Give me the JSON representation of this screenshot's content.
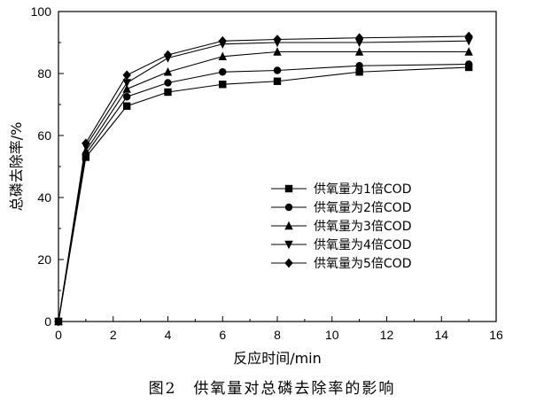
{
  "caption": "图2　供氧量对总磷去除率的影响",
  "chart_data": {
    "type": "line",
    "xlabel": "反应时间/min",
    "ylabel": "总磷去除率/%",
    "xlim": [
      0,
      16
    ],
    "ylim": [
      0,
      100
    ],
    "xticks": [
      0,
      2,
      4,
      6,
      8,
      10,
      12,
      14,
      16
    ],
    "yticks": [
      0,
      20,
      40,
      60,
      80,
      100
    ],
    "grid": false,
    "legend_position": "center-right",
    "x": [
      0,
      1,
      2.5,
      4,
      6,
      8,
      11,
      15
    ],
    "series": [
      {
        "name": "供氧量为1倍COD",
        "marker": "square",
        "values": [
          0,
          53,
          69.5,
          74,
          76.5,
          77.5,
          80.5,
          82
        ]
      },
      {
        "name": "供氧量为2倍COD",
        "marker": "circle",
        "values": [
          0,
          54,
          72.5,
          77,
          80.5,
          81,
          82.5,
          83
        ]
      },
      {
        "name": "供氧量为3倍COD",
        "marker": "triangle-up",
        "values": [
          0,
          55,
          75,
          80.5,
          85.5,
          87,
          87,
          87
        ]
      },
      {
        "name": "供氧量为4倍COD",
        "marker": "triangle-down",
        "values": [
          0,
          56.5,
          77,
          85,
          89.5,
          90,
          90,
          90.5
        ]
      },
      {
        "name": "供氧量为5倍COD",
        "marker": "diamond",
        "values": [
          0,
          57.5,
          79.5,
          86,
          90.5,
          91,
          91.5,
          92
        ]
      }
    ]
  }
}
